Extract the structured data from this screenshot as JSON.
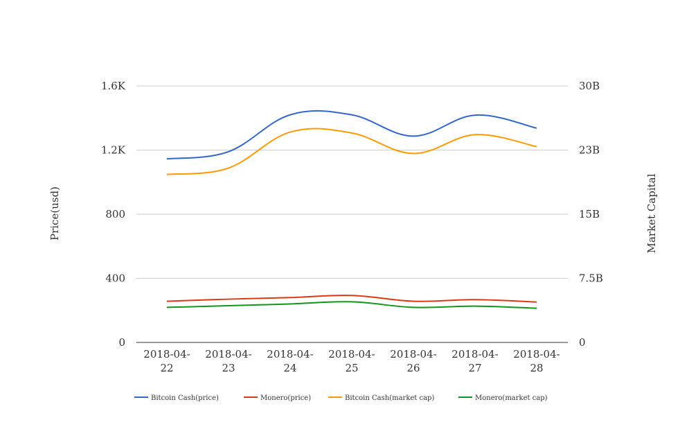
{
  "chart_data": {
    "type": "line",
    "x": [
      "2018-04-22",
      "2018-04-23",
      "2018-04-24",
      "2018-04-25",
      "2018-04-26",
      "2018-04-27",
      "2018-04-28"
    ],
    "x_tick_labels": [
      [
        "2018-04-",
        "22"
      ],
      [
        "2018-04-",
        "23"
      ],
      [
        "2018-04-",
        "24"
      ],
      [
        "2018-04-",
        "25"
      ],
      [
        "2018-04-",
        "26"
      ],
      [
        "2018-04-",
        "27"
      ],
      [
        "2018-04-",
        "28"
      ]
    ],
    "ylabel": "Price(usd)",
    "y2label": "Market Capital",
    "ylim": [
      0,
      1600
    ],
    "y2lim": [
      0,
      30000000000
    ],
    "y_ticks": [
      0,
      400,
      800,
      1200,
      1600
    ],
    "y_tick_labels": [
      "0",
      "400",
      "800",
      "1.2K",
      "1.6K"
    ],
    "y2_ticks": [
      0,
      7500000000,
      15000000000,
      22500000000,
      30000000000
    ],
    "y2_tick_labels": [
      "0",
      "7.5B",
      "15B",
      "23B",
      "30B"
    ],
    "grid": true,
    "legend_position": "bottom",
    "series": [
      {
        "name": "Bitcoin Cash(price)",
        "axis": "left",
        "color": "#3366cc",
        "values": [
          1145,
          1190,
          1420,
          1420,
          1287,
          1418,
          1337
        ]
      },
      {
        "name": "Monero(price)",
        "axis": "left",
        "color": "#dc3912",
        "values": [
          257,
          270,
          280,
          293,
          257,
          267,
          252
        ]
      },
      {
        "name": "Bitcoin Cash(market cap)",
        "axis": "right",
        "color": "#ff9900",
        "values": [
          19650000000,
          20400000000,
          24600000000,
          24500000000,
          22100000000,
          24300000000,
          22900000000
        ]
      },
      {
        "name": "Monero(market cap)",
        "axis": "right",
        "color": "#109618",
        "values": [
          4100000000,
          4300000000,
          4500000000,
          4750000000,
          4100000000,
          4250000000,
          4000000000
        ]
      }
    ]
  }
}
